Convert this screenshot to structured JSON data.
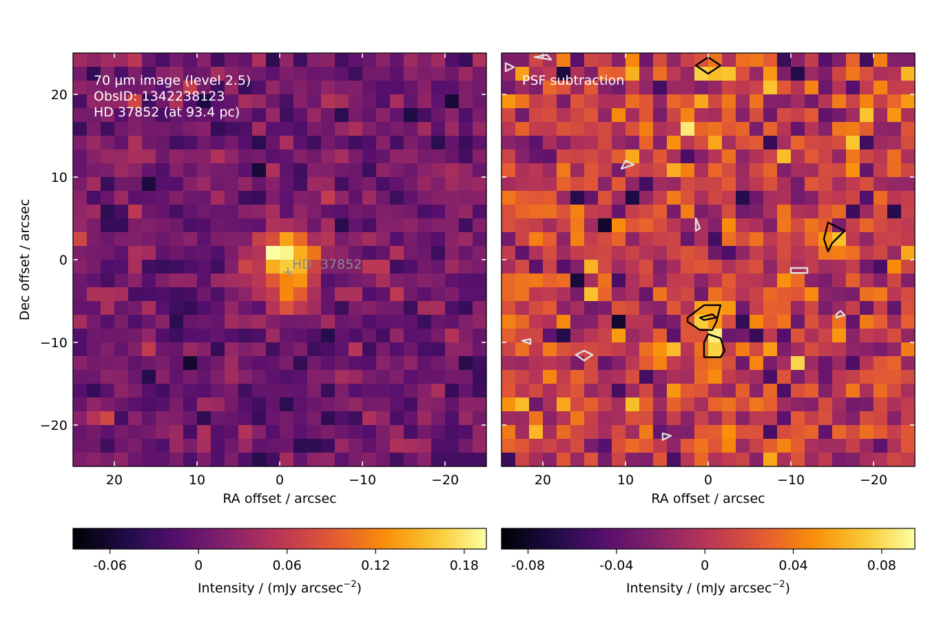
{
  "chart_data": [
    {
      "type": "heatmap",
      "xlabel": "RA offset / arcsec",
      "ylabel": "Dec offset / arcsec",
      "xlim": [
        25,
        -25
      ],
      "ylim": [
        -25,
        25
      ],
      "xticks": [
        20,
        10,
        0,
        -10,
        -20
      ],
      "yticks": [
        20,
        10,
        0,
        -10,
        -20
      ],
      "xtick_labels": [
        "20",
        "10",
        "0",
        "−10",
        "−20"
      ],
      "ytick_labels": [
        "20",
        "10",
        "0",
        "−10",
        "−20"
      ],
      "colormap": "inferno",
      "annotation_lines": [
        "70 µm image (level 2.5)",
        "ObsID: 1342238123",
        "HD 37852 (at 93.4 pc)"
      ],
      "star": {
        "name": "HD  37852",
        "ra": -1.0,
        "dec": -1.5
      },
      "sources": [
        {
          "ra": -1.0,
          "dec": 0.5,
          "amp": 0.2,
          "sigma": 2.2
        },
        {
          "ra": -1.0,
          "dec": -4.5,
          "amp": 0.07,
          "sigma": 2.0
        }
      ],
      "colorbar": {
        "min": -0.085,
        "max": 0.195,
        "ticks": [
          -0.06,
          0,
          0.06,
          0.12,
          0.18
        ],
        "tick_labels": [
          "-0.06",
          "0",
          "0.06",
          "0.12",
          "0.18"
        ],
        "label_prefix": "Intensity / (mJy arcsec",
        "label_exp": "−2",
        "label_suffix": ")"
      },
      "noise": {
        "mean": 0.005,
        "sd": 0.022,
        "seed": 7
      }
    },
    {
      "type": "heatmap",
      "xlabel": "RA offset / arcsec",
      "xlim": [
        25,
        -25
      ],
      "ylim": [
        -25,
        25
      ],
      "xticks": [
        20,
        10,
        0,
        -10,
        -20
      ],
      "xtick_labels": [
        "20",
        "10",
        "0",
        "−10",
        "−20"
      ],
      "colormap": "inferno",
      "annotation_lines": [
        "PSF subtraction"
      ],
      "sources": [
        {
          "ra": 0.0,
          "dec": -7.0,
          "amp": 0.075,
          "sigma": 1.6
        },
        {
          "ra": -0.5,
          "dec": -10.5,
          "amp": 0.06,
          "sigma": 1.4
        },
        {
          "ra": -15.0,
          "dec": 3.0,
          "amp": 0.07,
          "sigma": 1.3
        },
        {
          "ra": 0.0,
          "dec": 23.5,
          "amp": 0.07,
          "sigma": 1.2
        }
      ],
      "contours": [
        {
          "color": "#000000",
          "points": [
            [
              2.5,
              -7.0
            ],
            [
              0.5,
              -5.5
            ],
            [
              -1.5,
              -5.5
            ],
            [
              -1.0,
              -7.5
            ],
            [
              -0.5,
              -8.5
            ],
            [
              1.0,
              -8.5
            ],
            [
              2.5,
              -7.5
            ]
          ]
        },
        {
          "color": "#000000",
          "points": [
            [
              1.0,
              -7.0
            ],
            [
              -0.5,
              -6.6
            ],
            [
              -1.0,
              -7.0
            ],
            [
              0.5,
              -7.3
            ]
          ]
        },
        {
          "color": "#000000",
          "points": [
            [
              0.0,
              -9.0
            ],
            [
              -1.5,
              -9.5
            ],
            [
              -2.0,
              -11.0
            ],
            [
              -1.5,
              -11.8
            ],
            [
              0.5,
              -11.8
            ],
            [
              0.5,
              -10.0
            ]
          ]
        },
        {
          "color": "#000000",
          "points": [
            [
              -14.5,
              4.5
            ],
            [
              -16.5,
              3.5
            ],
            [
              -15.0,
              2.0
            ],
            [
              -14.5,
              1.0
            ],
            [
              -14.0,
              2.5
            ]
          ]
        },
        {
          "color": "#000000",
          "points": [
            [
              1.5,
              23.5
            ],
            [
              0.0,
              24.5
            ],
            [
              -1.5,
              23.5
            ],
            [
              0.0,
              22.5
            ]
          ]
        },
        {
          "color": "#e0e0e0",
          "points": [
            [
              -10.0,
              -1.6
            ],
            [
              -12.0,
              -1.6
            ],
            [
              -12.0,
              -1.0
            ],
            [
              -10.0,
              -1.0
            ]
          ]
        },
        {
          "color": "#e0e0e0",
          "points": [
            [
              -15.5,
              -7.0
            ],
            [
              -16.5,
              -6.7
            ],
            [
              -16.0,
              -6.2
            ],
            [
              -15.5,
              -6.6
            ]
          ]
        },
        {
          "color": "#e0e0e0",
          "points": [
            [
              1.5,
              5.0
            ],
            [
              1.0,
              3.8
            ],
            [
              1.5,
              3.5
            ]
          ]
        },
        {
          "color": "#e0e0e0",
          "points": [
            [
              10.0,
              12.0
            ],
            [
              9.0,
              11.5
            ],
            [
              10.5,
              11.0
            ]
          ]
        },
        {
          "color": "#e0e0e0",
          "points": [
            [
              15.0,
              -11.0
            ],
            [
              14.0,
              -11.5
            ],
            [
              15.0,
              -12.2
            ],
            [
              16.0,
              -11.5
            ]
          ]
        },
        {
          "color": "#e0e0e0",
          "points": [
            [
              22.5,
              -9.8
            ],
            [
              21.5,
              -9.6
            ],
            [
              21.5,
              -10.2
            ]
          ]
        },
        {
          "color": "#e0e0e0",
          "points": [
            [
              5.5,
              -21.0
            ],
            [
              4.5,
              -21.3
            ],
            [
              5.5,
              -21.8
            ]
          ]
        },
        {
          "color": "#e0e0e0",
          "points": [
            [
              24.5,
              23.8
            ],
            [
              23.5,
              23.3
            ],
            [
              24.5,
              22.8
            ]
          ]
        },
        {
          "color": "#e0e0e0",
          "points": [
            [
              21.0,
              24.5
            ],
            [
              19.0,
              24.2
            ],
            [
              19.5,
              24.8
            ]
          ]
        }
      ],
      "colorbar": {
        "min": -0.092,
        "max": 0.095,
        "ticks": [
          -0.08,
          -0.04,
          0,
          0.04,
          0.08
        ],
        "tick_labels": [
          "-0.08",
          "-0.04",
          "0",
          "0.04",
          "0.08"
        ],
        "label_prefix": "Intensity / (mJy arcsec",
        "label_exp": "−2",
        "label_suffix": ")"
      },
      "noise": {
        "mean": 0.003,
        "sd": 0.027,
        "seed": 23
      }
    }
  ]
}
